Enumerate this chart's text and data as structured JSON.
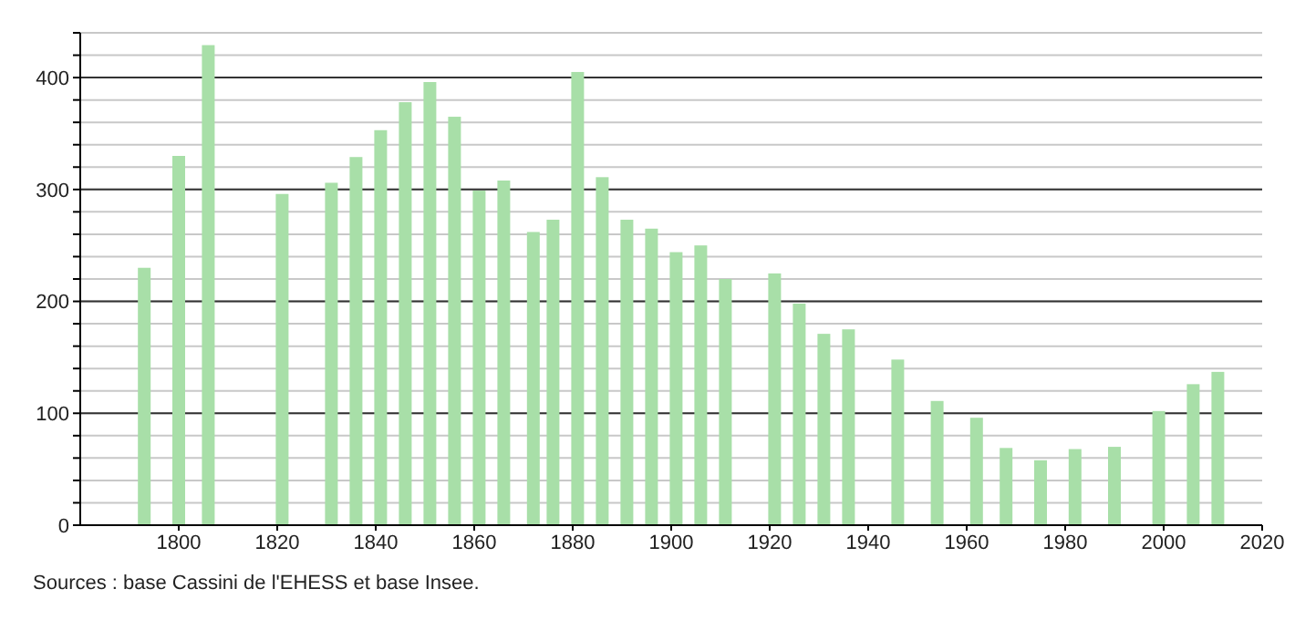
{
  "chart_data": {
    "type": "bar",
    "x": [
      1793,
      1800,
      1806,
      1821,
      1831,
      1836,
      1841,
      1846,
      1851,
      1856,
      1861,
      1866,
      1872,
      1876,
      1881,
      1886,
      1891,
      1896,
      1901,
      1906,
      1911,
      1921,
      1926,
      1931,
      1936,
      1946,
      1954,
      1962,
      1968,
      1975,
      1982,
      1990,
      1999,
      2006,
      2011
    ],
    "values": [
      230,
      330,
      429,
      296,
      306,
      329,
      353,
      378,
      396,
      365,
      299,
      308,
      262,
      273,
      405,
      311,
      273,
      265,
      244,
      250,
      220,
      225,
      198,
      171,
      175,
      148,
      111,
      96,
      69,
      58,
      68,
      70,
      102,
      126,
      137
    ],
    "color": "#a8dfa8",
    "xlim": [
      1780,
      2020
    ],
    "xticks": [
      1800,
      1820,
      1840,
      1860,
      1880,
      1900,
      1920,
      1940,
      1960,
      1980,
      2000,
      2020
    ],
    "ylim": [
      0,
      440
    ],
    "yticks": [
      0,
      {
        "value": 20,
        "label": null
      },
      {
        "value": 40,
        "label": null
      },
      {
        "value": 60,
        "label": null
      },
      {
        "value": 80,
        "label": null
      },
      100,
      {
        "value": 120,
        "label": null
      },
      {
        "value": 140,
        "label": null
      },
      {
        "value": 160,
        "label": null
      },
      {
        "value": 180,
        "label": null
      },
      200,
      {
        "value": 220,
        "label": null
      },
      {
        "value": 240,
        "label": null
      },
      {
        "value": 260,
        "label": null
      },
      {
        "value": 280,
        "label": null
      },
      300,
      {
        "value": 320,
        "label": null
      },
      {
        "value": 340,
        "label": null
      },
      {
        "value": 360,
        "label": null
      },
      {
        "value": 380,
        "label": null
      },
      400,
      {
        "value": 420,
        "label": null
      },
      {
        "value": 440,
        "label": null
      }
    ],
    "grid": "y",
    "annotations": [
      "Sources : base Cassini de l'EHESS et base Insee."
    ]
  }
}
